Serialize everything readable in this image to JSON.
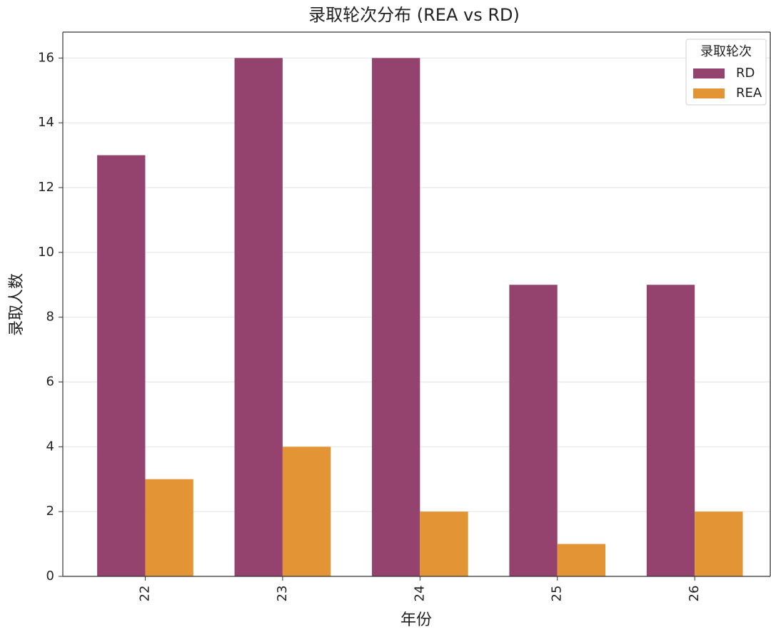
{
  "chart_data": {
    "type": "bar",
    "title": "录取轮次分布 (REA vs RD)",
    "x_label": "年份",
    "y_label": "录取人数",
    "categories": [
      "22",
      "23",
      "24",
      "25",
      "26"
    ],
    "series": [
      {
        "name": "RD",
        "color": "#94426e",
        "values": [
          13,
          16,
          16,
          9,
          9
        ]
      },
      {
        "name": "REA",
        "color": "#e39535",
        "values": [
          3,
          4,
          2,
          1,
          2
        ]
      }
    ],
    "legend_title": "录取轮次",
    "legend": "upper right",
    "ylim": [
      0,
      16.8
    ],
    "yticks": [
      0,
      2,
      4,
      6,
      8,
      10,
      12,
      14,
      16
    ],
    "grid": true
  }
}
